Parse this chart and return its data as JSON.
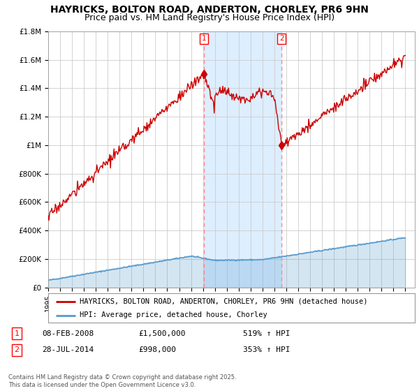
{
  "title": "HAYRICKS, BOLTON ROAD, ANDERTON, CHORLEY, PR6 9HN",
  "subtitle": "Price paid vs. HM Land Registry's House Price Index (HPI)",
  "ylim": [
    0,
    1800000
  ],
  "yticks": [
    0,
    200000,
    400000,
    600000,
    800000,
    1000000,
    1200000,
    1400000,
    1600000,
    1800000
  ],
  "ytick_labels": [
    "£0",
    "£200K",
    "£400K",
    "£600K",
    "£800K",
    "£1M",
    "£1.2M",
    "£1.4M",
    "£1.6M",
    "£1.8M"
  ],
  "x_start_year": 1995,
  "x_end_year": 2025,
  "event1": {
    "date": "08-FEB-2008",
    "price": 1500000,
    "pct": "519%",
    "year": 2008.1
  },
  "event2": {
    "date": "28-JUL-2014",
    "price": 998000,
    "pct": "353%",
    "year": 2014.6
  },
  "legend_property": "HAYRICKS, BOLTON ROAD, ANDERTON, CHORLEY, PR6 9HN (detached house)",
  "legend_hpi": "HPI: Average price, detached house, Chorley",
  "footnote": "Contains HM Land Registry data © Crown copyright and database right 2025.\nThis data is licensed under the Open Government Licence v3.0.",
  "background_color": "#ffffff",
  "grid_color": "#cccccc",
  "property_line_color": "#cc0000",
  "hpi_line_color": "#5599cc",
  "shade_color": "#ddeeff",
  "dashed_color": "#ff8888",
  "title_fontsize": 10,
  "subtitle_fontsize": 9,
  "tick_fontsize": 7.5,
  "legend_fontsize": 8,
  "table_fontsize": 8
}
